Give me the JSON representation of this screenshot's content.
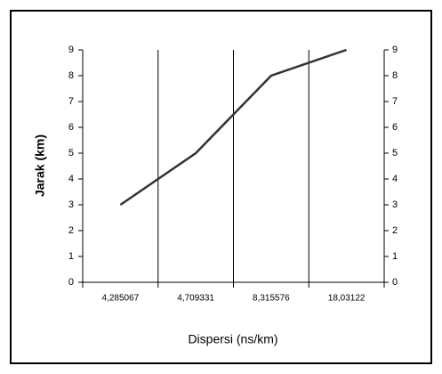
{
  "chart_data": {
    "type": "line",
    "xlabel": "Dispersi (ns/km)",
    "ylabel": "Jarak (km)",
    "categories": [
      "4,285067",
      "4,709331",
      "8,315576",
      "18,03122"
    ],
    "series": [
      {
        "name": "Jarak",
        "color": "#333333",
        "values": [
          3,
          5,
          8,
          9
        ]
      }
    ],
    "ylim": [
      0,
      9
    ],
    "yticks": [
      0,
      1,
      2,
      3,
      4,
      5,
      6,
      7,
      8,
      9
    ],
    "y2lim": [
      0,
      9
    ],
    "y2ticks": [
      0,
      1,
      2,
      3,
      4,
      5,
      6,
      7,
      8,
      9
    ],
    "grid": "x"
  }
}
